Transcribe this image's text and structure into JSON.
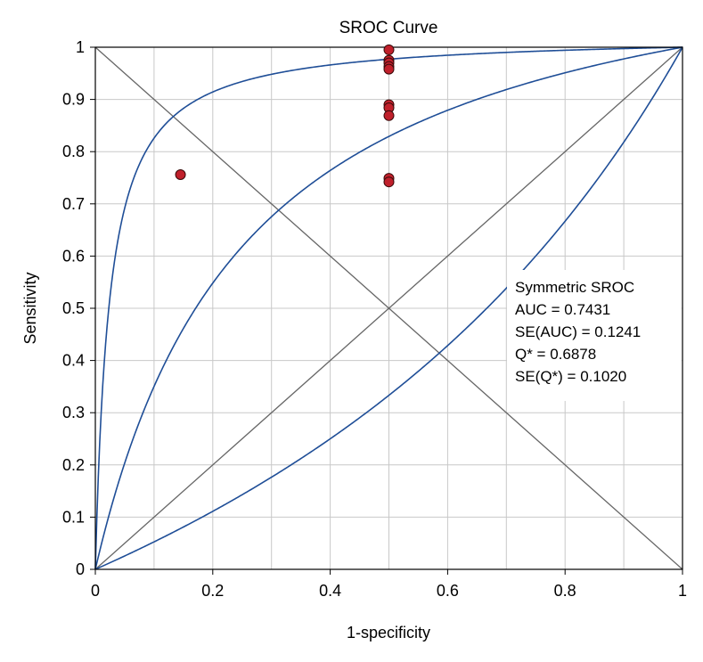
{
  "chart_data": {
    "type": "scatter",
    "title": "SROC Curve",
    "xlabel": "1-specificity",
    "ylabel": "Sensitivity",
    "xlim": [
      0,
      1
    ],
    "ylim": [
      0,
      1
    ],
    "grid": true,
    "x_ticks": [
      "0",
      "0.2",
      "0.4",
      "0.6",
      "0.8",
      "1"
    ],
    "y_ticks": [
      "0",
      "0.1",
      "0.2",
      "0.3",
      "0.4",
      "0.5",
      "0.6",
      "0.7",
      "0.8",
      "0.9",
      "1"
    ],
    "points": [
      {
        "x": 0.145,
        "y": 0.756
      },
      {
        "x": 0.5,
        "y": 0.995
      },
      {
        "x": 0.5,
        "y": 0.975
      },
      {
        "x": 0.5,
        "y": 0.97
      },
      {
        "x": 0.5,
        "y": 0.963
      },
      {
        "x": 0.5,
        "y": 0.958
      },
      {
        "x": 0.5,
        "y": 0.89
      },
      {
        "x": 0.5,
        "y": 0.884
      },
      {
        "x": 0.5,
        "y": 0.869
      },
      {
        "x": 0.5,
        "y": 0.749
      },
      {
        "x": 0.5,
        "y": 0.742
      }
    ],
    "sroc_curves": [
      {
        "odds_ratio": 42.67
      },
      {
        "odds_ratio": 4.854
      },
      {
        "odds_ratio": 0.5
      }
    ],
    "reference_lines": [
      "diagonal",
      "anti-diagonal"
    ],
    "point_color": "#c0202b",
    "curve_color": "#1f4e97",
    "legend_position": "right",
    "legend": [
      "Symmetric SROC",
      "AUC = 0.7431",
      "SE(AUC) = 0.1241",
      "Q* = 0.6878",
      "SE(Q*) = 0.1020"
    ]
  }
}
